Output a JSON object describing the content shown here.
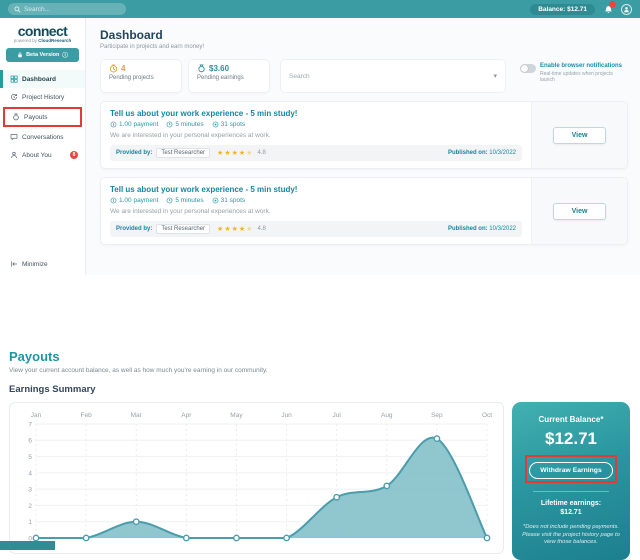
{
  "topbar": {
    "search_placeholder": "Search...",
    "balance_label": "Balance: $12.71"
  },
  "sidebar": {
    "logo_text": "connect",
    "logo_tm": "TM",
    "powered_by": "powered by",
    "brand": "CloudResearch",
    "beta_label": "Beta Version",
    "items": [
      {
        "label": "Dashboard",
        "icon": "dashboard-icon",
        "active": true
      },
      {
        "label": "Project History",
        "icon": "history-icon"
      },
      {
        "label": "Payouts",
        "icon": "money-bag-icon",
        "annotated": true
      },
      {
        "label": "Conversations",
        "icon": "chat-icon"
      },
      {
        "label": "About You",
        "icon": "person-icon",
        "badge": "8"
      }
    ],
    "minimize_label": "Minimize"
  },
  "dashboard": {
    "title": "Dashboard",
    "subtitle": "Participate in projects and earn money!",
    "stats": [
      {
        "value": "4",
        "label": "Pending projects",
        "icon": "clock-icon",
        "color": "#e09f3a"
      },
      {
        "value": "$3.60",
        "label": "Pending earnings",
        "icon": "money-bag-icon",
        "color": "#2b929b"
      }
    ],
    "filter_search_placeholder": "Search",
    "notifications_toggle": {
      "label": "Enable browser notifications",
      "sublabel": "Real-time updates when projects launch",
      "state": "off"
    },
    "studies": [
      {
        "title": "Tell us about your work experience - 5 min study!",
        "payment": "1.00 payment",
        "duration": "5 minutes",
        "spots": "31 spots",
        "description": "We are interested in your personal experiences at work.",
        "provided_by_label": "Provided by:",
        "provider": "Test Researcher",
        "rating": "4.8",
        "published_label": "Published on:",
        "published_date": "10/3/2022",
        "view_label": "View"
      },
      {
        "title": "Tell us about your work experience - 5 min study!",
        "payment": "1.00 payment",
        "duration": "5 minutes",
        "spots": "31 spots",
        "description": "We are interested in your personal experiences at work.",
        "provided_by_label": "Provided by:",
        "provider": "Test Researcher",
        "rating": "4.8",
        "published_label": "Published on:",
        "published_date": "10/3/2022",
        "view_label": "View"
      }
    ]
  },
  "payouts": {
    "title": "Payouts",
    "subtitle": "View your current account balance, as well as how much you're earning in our community.",
    "section_title": "Earnings Summary",
    "balance_card": {
      "title": "Current Balance*",
      "amount": "$12.71",
      "withdraw_label": "Withdraw Earnings",
      "lifetime_label": "Lifetime earnings:",
      "lifetime_amount": "$12.71",
      "footnote": "*Does not include pending payments. Please visit the project history page to view those balances."
    }
  },
  "chart_data": {
    "type": "area",
    "title": "Earnings Summary",
    "categories": [
      "Jan",
      "Feb",
      "Mar",
      "Apr",
      "May",
      "Jun",
      "Jul",
      "Aug",
      "Sep",
      "Oct"
    ],
    "values": [
      0,
      0,
      1,
      0,
      0,
      0,
      2.5,
      3.2,
      6.1,
      0
    ],
    "xlabel": "",
    "ylabel": "",
    "ylim": [
      0,
      7
    ],
    "yticks": [
      0,
      1,
      2,
      3,
      4,
      5,
      6,
      7
    ],
    "grid": true,
    "legend": "none",
    "line_color": "#4c9cab",
    "fill_color": "rgba(125,189,199,0.85)"
  },
  "icons": {
    "star": "★",
    "chevron_down": "▾",
    "info": "ⓘ"
  },
  "colors": {
    "accent_teal": "#2a9aa2",
    "topbar": "#3b9da3",
    "annotation_red": "#e23a36",
    "star_gold": "#f0b429",
    "pending_orange": "#e09f3a"
  }
}
